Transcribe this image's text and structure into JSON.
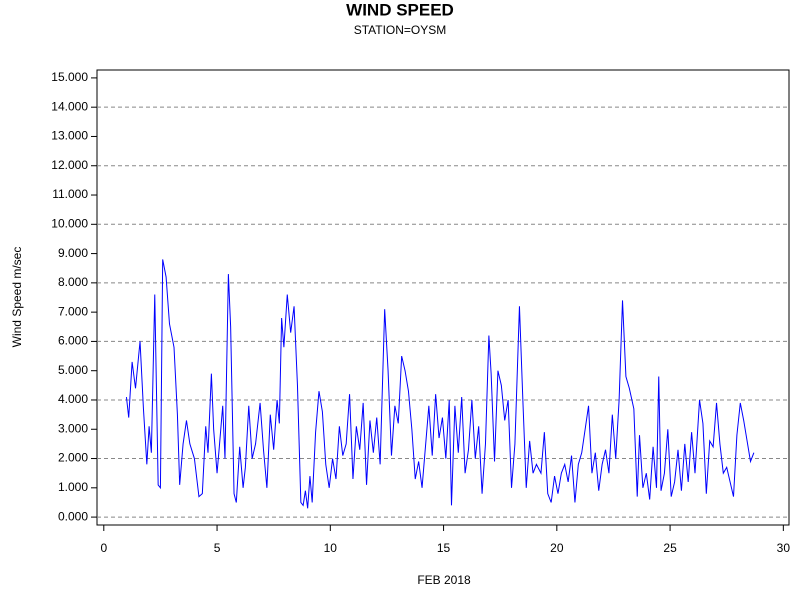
{
  "chart_data": {
    "type": "line",
    "title": "WIND SPEED",
    "subtitle": "STATION=OYSM",
    "x_label": "FEB 2018",
    "y_label": "Wind Speed m/sec",
    "xlim": [
      -0.3,
      30.25
    ],
    "xticks": [
      0,
      5,
      10,
      15,
      20,
      25,
      30
    ],
    "ylim": [
      -0.27,
      15.27
    ],
    "yticks": [
      {
        "value": 0,
        "label": "0.000"
      },
      {
        "value": 1,
        "label": "1.000"
      },
      {
        "value": 2,
        "label": "2.000"
      },
      {
        "value": 3,
        "label": "3.000"
      },
      {
        "value": 4,
        "label": "4.000"
      },
      {
        "value": 5,
        "label": "5.000"
      },
      {
        "value": 6,
        "label": "6.000"
      },
      {
        "value": 7,
        "label": "7.000"
      },
      {
        "value": 8,
        "label": "8.000"
      },
      {
        "value": 9,
        "label": "9.000"
      },
      {
        "value": 10,
        "label": "10.000"
      },
      {
        "value": 11,
        "label": "11.000"
      },
      {
        "value": 12,
        "label": "12.000"
      },
      {
        "value": 13,
        "label": "13.000"
      },
      {
        "value": 14,
        "label": "14.000"
      },
      {
        "value": 15,
        "label": "15.000"
      }
    ],
    "ygrid": [
      0,
      2,
      4,
      6,
      8,
      10,
      12,
      14
    ],
    "color": "#0000ff",
    "x": [
      1.0,
      1.1,
      1.25,
      1.4,
      1.6,
      1.75,
      1.9,
      2.0,
      2.1,
      2.25,
      2.4,
      2.5,
      2.6,
      2.75,
      2.9,
      3.1,
      3.25,
      3.35,
      3.5,
      3.65,
      3.8,
      4.0,
      4.2,
      4.35,
      4.5,
      4.6,
      4.75,
      4.85,
      5.0,
      5.1,
      5.25,
      5.35,
      5.5,
      5.6,
      5.75,
      5.85,
      6.0,
      6.15,
      6.25,
      6.4,
      6.55,
      6.7,
      6.9,
      7.05,
      7.2,
      7.35,
      7.5,
      7.65,
      7.75,
      7.85,
      7.95,
      8.1,
      8.25,
      8.4,
      8.55,
      8.7,
      8.8,
      8.9,
      9.0,
      9.1,
      9.2,
      9.35,
      9.5,
      9.65,
      9.8,
      9.95,
      10.1,
      10.25,
      10.4,
      10.55,
      10.7,
      10.85,
      11.0,
      11.15,
      11.3,
      11.45,
      11.6,
      11.75,
      11.9,
      12.05,
      12.2,
      12.4,
      12.55,
      12.7,
      12.85,
      13.0,
      13.15,
      13.3,
      13.45,
      13.6,
      13.75,
      13.9,
      14.05,
      14.2,
      14.35,
      14.5,
      14.65,
      14.8,
      14.95,
      15.1,
      15.25,
      15.35,
      15.5,
      15.65,
      15.8,
      15.95,
      16.1,
      16.25,
      16.4,
      16.55,
      16.7,
      16.85,
      17.0,
      17.1,
      17.25,
      17.4,
      17.55,
      17.7,
      17.85,
      18.0,
      18.15,
      18.35,
      18.5,
      18.65,
      18.8,
      18.95,
      19.1,
      19.3,
      19.45,
      19.6,
      19.75,
      19.9,
      20.05,
      20.2,
      20.35,
      20.5,
      20.65,
      20.8,
      20.95,
      21.1,
      21.25,
      21.4,
      21.55,
      21.7,
      21.85,
      22.0,
      22.15,
      22.3,
      22.45,
      22.6,
      22.75,
      22.9,
      23.05,
      23.2,
      23.4,
      23.55,
      23.65,
      23.8,
      23.95,
      24.1,
      24.25,
      24.4,
      24.5,
      24.6,
      24.75,
      24.9,
      25.05,
      25.2,
      25.35,
      25.5,
      25.65,
      25.8,
      25.95,
      26.1,
      26.3,
      26.45,
      26.6,
      26.75,
      26.9,
      27.05,
      27.2,
      27.35,
      27.5,
      27.65,
      27.8,
      27.95,
      28.1,
      28.25,
      28.4,
      28.55,
      28.7
    ],
    "values": [
      4.1,
      3.4,
      5.3,
      4.4,
      6.0,
      3.7,
      1.8,
      3.1,
      2.2,
      7.6,
      1.1,
      1.0,
      8.8,
      8.2,
      6.6,
      5.8,
      3.5,
      1.1,
      2.5,
      3.3,
      2.5,
      2.0,
      0.7,
      0.8,
      3.1,
      2.2,
      4.9,
      3.0,
      1.5,
      2.4,
      3.8,
      2.0,
      8.3,
      6.5,
      0.8,
      0.5,
      2.4,
      1.0,
      1.7,
      3.8,
      2.0,
      2.5,
      3.9,
      2.3,
      1.0,
      3.5,
      2.3,
      4.0,
      3.2,
      6.8,
      5.8,
      7.6,
      6.3,
      7.2,
      4.5,
      0.5,
      0.4,
      0.9,
      0.3,
      1.4,
      0.5,
      2.9,
      4.3,
      3.6,
      1.8,
      1.0,
      2.0,
      1.3,
      3.1,
      2.1,
      2.5,
      4.2,
      1.3,
      3.1,
      2.3,
      3.9,
      1.1,
      3.3,
      2.2,
      3.4,
      1.8,
      7.1,
      5.0,
      2.1,
      3.8,
      3.2,
      5.5,
      5.0,
      4.3,
      3.0,
      1.3,
      1.9,
      1.0,
      2.4,
      3.8,
      2.1,
      4.2,
      2.7,
      3.4,
      2.0,
      4.0,
      0.4,
      3.8,
      2.2,
      4.1,
      1.5,
      2.3,
      4.0,
      2.0,
      3.1,
      0.8,
      2.5,
      6.2,
      4.9,
      1.9,
      5.0,
      4.5,
      3.3,
      4.0,
      1.0,
      2.5,
      7.2,
      4.0,
      1.0,
      2.6,
      1.5,
      1.8,
      1.5,
      2.9,
      0.8,
      0.5,
      1.4,
      0.8,
      1.5,
      1.8,
      1.2,
      2.1,
      0.5,
      1.8,
      2.2,
      3.0,
      3.8,
      1.5,
      2.2,
      0.9,
      1.8,
      2.3,
      1.5,
      3.5,
      2.0,
      4.0,
      7.4,
      4.8,
      4.4,
      3.7,
      0.7,
      2.8,
      1.0,
      1.5,
      0.6,
      2.4,
      1.0,
      4.8,
      0.9,
      1.5,
      3.0,
      0.7,
      1.2,
      2.3,
      0.9,
      2.5,
      1.2,
      2.9,
      1.5,
      4.0,
      3.2,
      0.8,
      2.6,
      2.4,
      3.9,
      2.5,
      1.5,
      1.7,
      1.2,
      0.7,
      2.8,
      3.9,
      3.3,
      2.6,
      1.9,
      2.2
    ]
  }
}
